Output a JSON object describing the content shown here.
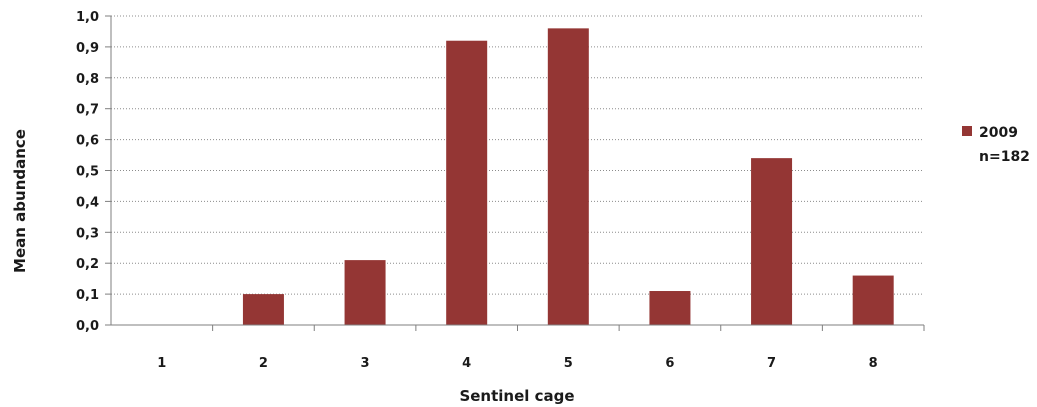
{
  "chart_data": {
    "type": "bar",
    "categories": [
      "1",
      "2",
      "3",
      "4",
      "5",
      "6",
      "7",
      "8"
    ],
    "series": [
      {
        "name": "2009",
        "values": [
          0.0,
          0.1,
          0.21,
          0.92,
          0.96,
          0.11,
          0.54,
          0.16
        ]
      }
    ],
    "legend_lines": [
      "2009",
      "n=182"
    ],
    "xlabel": "Sentinel cage",
    "ylabel": "Mean abundance",
    "ylim": [
      0,
      1.0
    ],
    "yticks": [
      "0,0",
      "0,1",
      "0,2",
      "0,3",
      "0,4",
      "0,5",
      "0,6",
      "0,7",
      "0,8",
      "0,9",
      "1,0"
    ],
    "grid": true,
    "legend_position": "right",
    "bar_color": "#943634"
  }
}
